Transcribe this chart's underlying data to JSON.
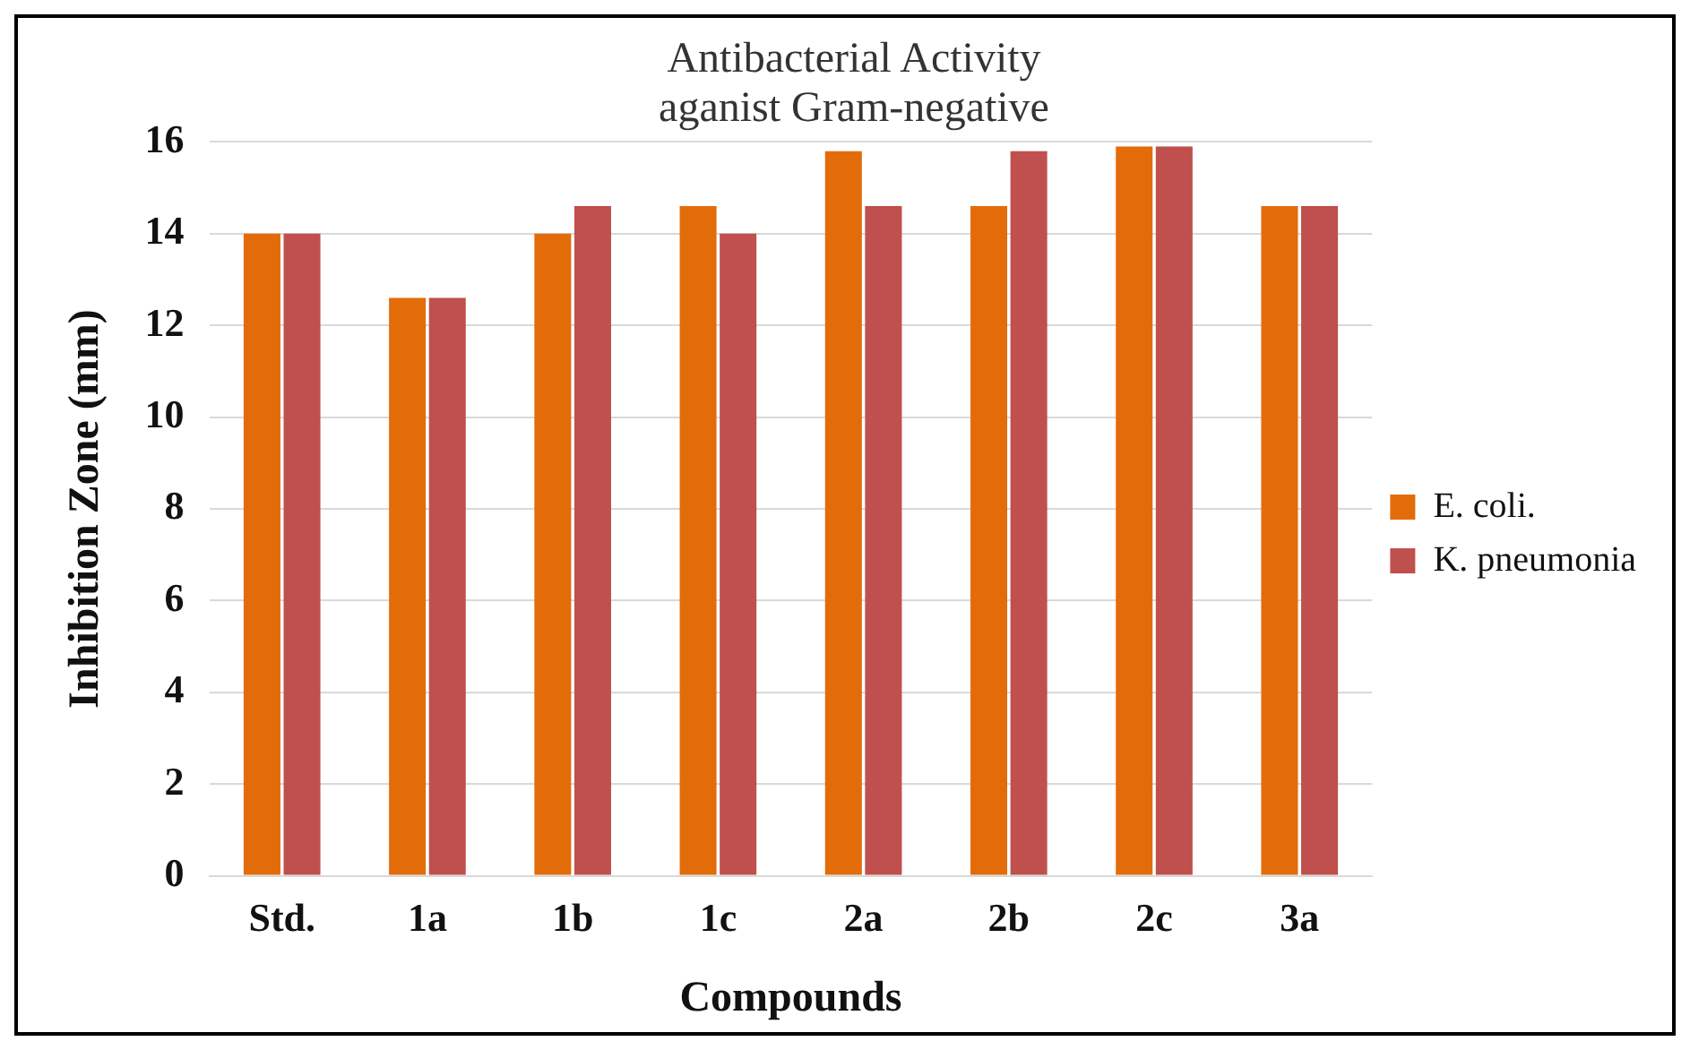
{
  "chart_data": {
    "type": "bar",
    "title": "Antibacterial Activity\naganist Gram-negative",
    "xlabel": "Compounds",
    "ylabel": "Inhibition Zone (mm)",
    "categories": [
      "Std.",
      "1a",
      "1b",
      "1c",
      "2a",
      "2b",
      "2c",
      "3a"
    ],
    "series": [
      {
        "name": "E. coli.",
        "color": "#e36c0a",
        "values": [
          14,
          12.6,
          14,
          14.6,
          15.8,
          14.6,
          15.9,
          14.6
        ]
      },
      {
        "name": "K. pneumonia",
        "color": "#c0504d",
        "values": [
          14,
          12.6,
          14.6,
          14,
          14.6,
          15.8,
          15.9,
          14.6
        ]
      }
    ],
    "ylim": [
      0,
      16
    ],
    "yticks": [
      0,
      2,
      4,
      6,
      8,
      10,
      12,
      14,
      16
    ],
    "grid": "y",
    "legend": "right"
  }
}
